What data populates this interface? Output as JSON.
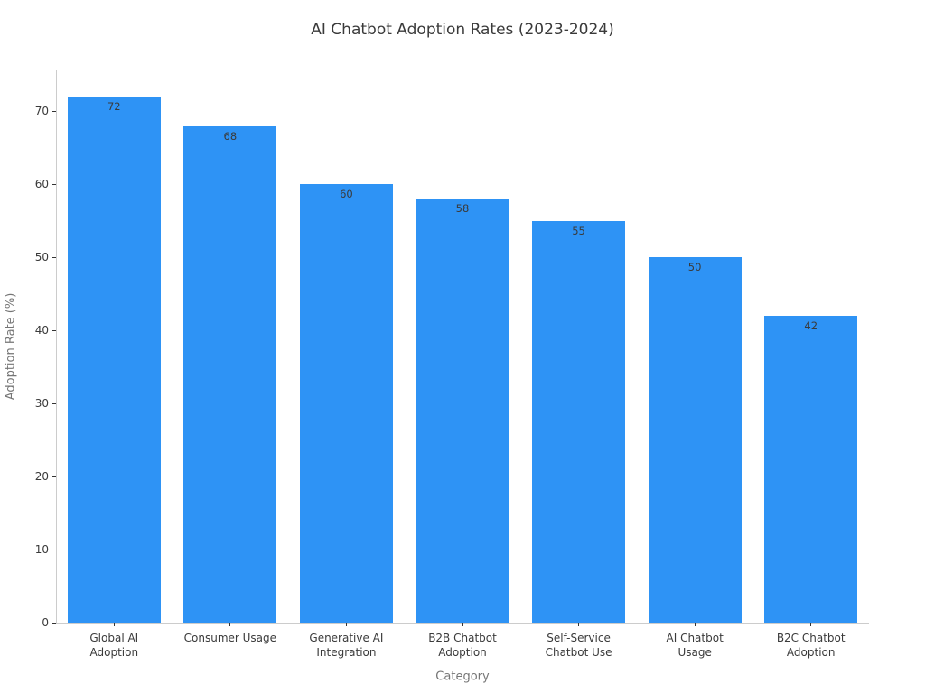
{
  "chart_data": {
    "type": "bar",
    "title": "AI Chatbot Adoption Rates (2023-2024)",
    "xlabel": "Category",
    "ylabel": "Adoption Rate (%)",
    "categories": [
      "Global AI\nAdoption",
      "Consumer Usage",
      "Generative AI\nIntegration",
      "B2B Chatbot\nAdoption",
      "Self-Service\nChatbot Use",
      "AI Chatbot\nUsage",
      "B2C Chatbot\nAdoption"
    ],
    "values": [
      72,
      68,
      60,
      58,
      55,
      50,
      42
    ],
    "value_labels": [
      "72",
      "68",
      "60",
      "58",
      "55",
      "50",
      "42"
    ],
    "yticks": [
      0,
      10,
      20,
      30,
      40,
      50,
      60,
      70
    ],
    "ylim": [
      0,
      75.6
    ],
    "grid": false,
    "legend": null,
    "bar_width_fraction": 0.8
  },
  "colors": {
    "bar": "#2E93F5",
    "spine": "#cccccc",
    "tick_mark": "#333333",
    "tick_label": "#3a3a3a",
    "axis_label": "#757575",
    "title": "#3a3a3a",
    "value_label": "#3a3a3a",
    "background": "#ffffff"
  }
}
